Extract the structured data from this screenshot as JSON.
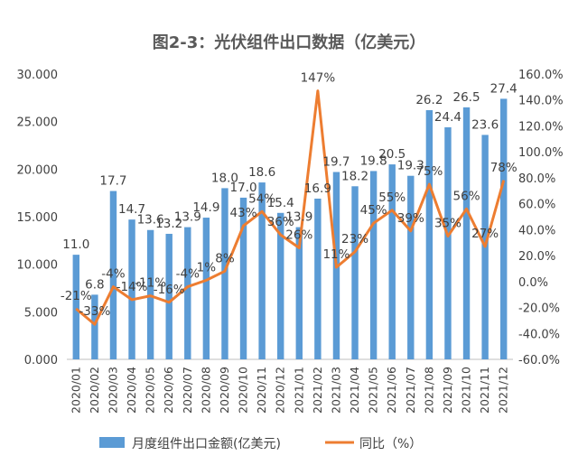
{
  "chart_data": {
    "type": "bar+line",
    "title": "图2-3：光伏组件出口数据（亿美元）",
    "categories": [
      "2020/01",
      "2020/02",
      "2020/03",
      "2020/04",
      "2020/05",
      "2020/06",
      "2020/07",
      "2020/08",
      "2020/09",
      "2020/10",
      "2020/11",
      "2020/12",
      "2021/01",
      "2021/02",
      "2021/03",
      "2021/04",
      "2021/05",
      "2021/06",
      "2021/07",
      "2021/08",
      "2021/09",
      "2021/10",
      "2021/11",
      "2021/12"
    ],
    "series": [
      {
        "name": "月度组件出口金额(亿美元)",
        "type": "bar",
        "axis": "left",
        "color": "#5B9BD5",
        "values": [
          11.0,
          6.8,
          17.7,
          14.7,
          13.6,
          13.2,
          13.9,
          14.9,
          18.0,
          17.0,
          18.6,
          15.4,
          13.9,
          16.9,
          19.7,
          18.2,
          19.8,
          20.5,
          19.3,
          26.2,
          24.4,
          26.5,
          23.6,
          27.4
        ],
        "labels": [
          "11.0",
          "6.8",
          "17.7",
          "14.7",
          "13.6",
          "13.2",
          "13.9",
          "14.9",
          "18.0",
          "17.0",
          "18.6",
          "15.4",
          "13.9",
          "16.9",
          "19.7",
          "18.2",
          "19.8",
          "20.5",
          "19.3",
          "26.2",
          "24.4",
          "26.5",
          "23.6",
          "27.4"
        ]
      },
      {
        "name": "同比（%）",
        "type": "line",
        "axis": "right",
        "color": "#ED7D31",
        "values": [
          -21,
          -33,
          -4,
          -14,
          -11,
          -16,
          -4,
          1,
          8,
          43,
          54,
          36,
          26,
          147,
          11,
          23,
          45,
          55,
          39,
          75,
          35,
          56,
          27,
          78
        ],
        "labels": [
          "-21%",
          "-33%",
          "-4%",
          "-14%",
          "-11%",
          "-16%",
          "-4%",
          "1%",
          "8%",
          "43%",
          "54%",
          "36%",
          "26%",
          "147%",
          "11%",
          "23%",
          "45%",
          "55%",
          "39%",
          "75%",
          "35%",
          "56%",
          "27%",
          "78%"
        ]
      }
    ],
    "y_left": {
      "min": 0,
      "max": 30,
      "step": 5,
      "tick_labels": [
        "0.000",
        "5.000",
        "10.000",
        "15.000",
        "20.000",
        "25.000",
        "30.000"
      ]
    },
    "y_right": {
      "min": -60,
      "max": 160,
      "step": 20,
      "tick_labels": [
        "-60.0%",
        "-40.0%",
        "-20.0%",
        "0.0%",
        "20.0%",
        "40.0%",
        "60.0%",
        "80.0%",
        "100.0%",
        "120.0%",
        "140.0%",
        "160.0%"
      ]
    },
    "grid": false,
    "legend_position": "bottom"
  }
}
